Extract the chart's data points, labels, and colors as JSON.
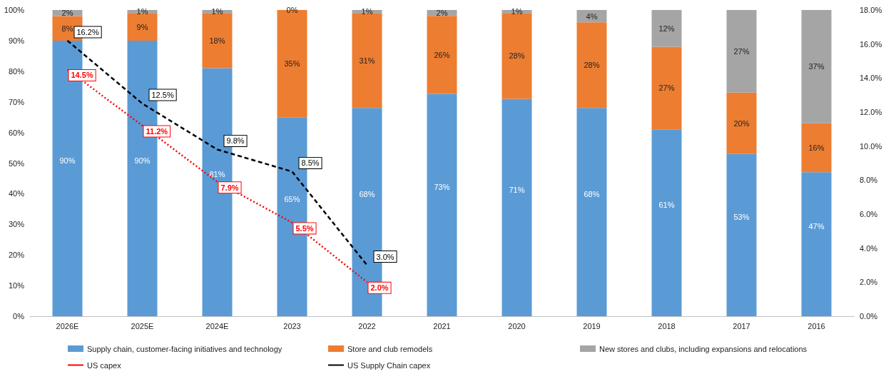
{
  "chart_data": {
    "type": "bar",
    "stacked": true,
    "categories": [
      "2026E",
      "2025E",
      "2024E",
      "2023",
      "2022",
      "2021",
      "2020",
      "2019",
      "2018",
      "2017",
      "2016"
    ],
    "series": [
      {
        "name": "Supply chain, customer-facing initiatives and technology",
        "color": "#5b9bd5",
        "values": [
          90,
          90,
          81,
          65,
          68,
          72.6,
          71,
          68,
          61,
          53,
          47
        ],
        "value_labels": [
          "90%",
          "90%",
          "81%",
          "65%",
          "68%",
          "73%",
          "71%",
          "68%",
          "61%",
          "53%",
          "47%"
        ]
      },
      {
        "name": "Store and club remodels",
        "color": "#ed7d31",
        "values": [
          8,
          9,
          18,
          35,
          31,
          25.5,
          28,
          28,
          27,
          20,
          16
        ],
        "value_labels": [
          "8%",
          "9%",
          "18%",
          "35%",
          "31%",
          "26%",
          "28%",
          "28%",
          "27%",
          "20%",
          "16%"
        ]
      },
      {
        "name": "New stores and clubs, including expansions and relocations",
        "color": "#a5a5a5",
        "values": [
          2,
          1,
          1,
          0,
          1,
          1.9,
          1,
          4,
          12,
          27,
          37
        ],
        "value_labels": [
          "2%",
          "1%",
          "1%",
          "0%",
          "1%",
          "2%",
          "1%",
          "4%",
          "12%",
          "27%",
          "37%"
        ]
      },
      {
        "name": "US capex",
        "type": "line",
        "axis": "y2",
        "color": "#ff0000",
        "line_style": "dotted",
        "values": [
          14.5,
          11.2,
          7.9,
          5.5,
          2.0,
          null,
          null,
          null,
          null,
          null,
          null
        ],
        "value_labels": [
          "14.5%",
          "11.2%",
          "7.9%",
          "5.5%",
          "2.0%",
          null,
          null,
          null,
          null,
          null,
          null
        ]
      },
      {
        "name": "US Supply Chain capex",
        "type": "line",
        "axis": "y2",
        "color": "#000000",
        "line_style": "dashed",
        "values": [
          16.2,
          12.5,
          9.8,
          8.5,
          3.0,
          null,
          null,
          null,
          null,
          null,
          null
        ],
        "value_labels": [
          "16.2%",
          "12.5%",
          "9.8%",
          "8.5%",
          "3.0%",
          null,
          null,
          null,
          null,
          null,
          null
        ]
      }
    ],
    "ylim": [
      0,
      100
    ],
    "yticks": [
      {
        "value": 0,
        "label": "0%"
      },
      {
        "value": 10,
        "label": "10%"
      },
      {
        "value": 20,
        "label": "20%"
      },
      {
        "value": 30,
        "label": "30%"
      },
      {
        "value": 40,
        "label": "40%"
      },
      {
        "value": 50,
        "label": "50%"
      },
      {
        "value": 60,
        "label": "60%"
      },
      {
        "value": 70,
        "label": "70%"
      },
      {
        "value": 80,
        "label": "80%"
      },
      {
        "value": 90,
        "label": "90%"
      },
      {
        "value": 100,
        "label": "100%"
      }
    ],
    "y2lim": [
      0,
      18
    ],
    "y2ticks": [
      {
        "value": 0,
        "label": "0.0%"
      },
      {
        "value": 2,
        "label": "2.0%"
      },
      {
        "value": 4,
        "label": "4.0%"
      },
      {
        "value": 6,
        "label": "6.0%"
      },
      {
        "value": 8,
        "label": "8.0%"
      },
      {
        "value": 10,
        "label": "10.0%"
      },
      {
        "value": 12,
        "label": "12.0%"
      },
      {
        "value": 14,
        "label": "14.0%"
      },
      {
        "value": 16,
        "label": "16.0%"
      },
      {
        "value": 18,
        "label": "18.0%"
      }
    ],
    "grid": false,
    "legend": "bottom",
    "marker": "none"
  }
}
